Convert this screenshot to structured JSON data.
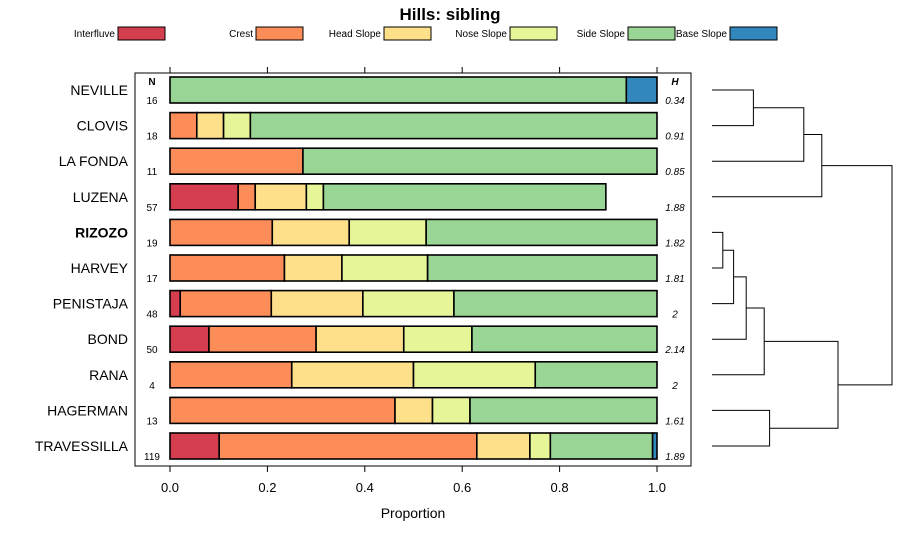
{
  "chart_data": {
    "type": "bar",
    "stacked": true,
    "orientation": "horizontal",
    "title": "Hills: sibling",
    "xlabel": "Proportion",
    "ylabel": "",
    "xlim": [
      0,
      1
    ],
    "xticks": [
      "0.0",
      "0.2",
      "0.4",
      "0.6",
      "0.8",
      "1.0"
    ],
    "n_header": "N",
    "h_header": "H",
    "legend": [
      {
        "name": "Interfluve",
        "color": "#D53E4F"
      },
      {
        "name": "Crest",
        "color": "#FC8D59"
      },
      {
        "name": "Head Slope",
        "color": "#FEE08B"
      },
      {
        "name": "Nose Slope",
        "color": "#E6F598"
      },
      {
        "name": "Side Slope",
        "color": "#99D594"
      },
      {
        "name": "Base Slope",
        "color": "#3288BD"
      }
    ],
    "rows": [
      {
        "name": "NEVILLE",
        "n": "16",
        "h": "0.34",
        "bold": false,
        "values": [
          0,
          0,
          0,
          0,
          0.937,
          0.063
        ]
      },
      {
        "name": "CLOVIS",
        "n": "18",
        "h": "0.91",
        "bold": false,
        "values": [
          0,
          0.055,
          0.055,
          0.055,
          0.835,
          0
        ]
      },
      {
        "name": "LA FONDA",
        "n": "11",
        "h": "0.85",
        "bold": false,
        "values": [
          0,
          0.273,
          0,
          0,
          0.727,
          0
        ]
      },
      {
        "name": "LUZENA",
        "n": "57",
        "h": "1.88",
        "bold": false,
        "values": [
          0.14,
          0.035,
          0.105,
          0.035,
          0.58,
          0
        ]
      },
      {
        "name": "RIZOZO",
        "n": "19",
        "h": "1.82",
        "bold": true,
        "values": [
          0,
          0.21,
          0.158,
          0.158,
          0.474,
          0
        ]
      },
      {
        "name": "HARVEY",
        "n": "17",
        "h": "1.81",
        "bold": false,
        "values": [
          0,
          0.235,
          0.118,
          0.176,
          0.471,
          0
        ]
      },
      {
        "name": "PENISTAJA",
        "n": "48",
        "h": "2",
        "bold": false,
        "values": [
          0.021,
          0.187,
          0.188,
          0.187,
          0.417,
          0
        ]
      },
      {
        "name": "BOND",
        "n": "50",
        "h": "2.14",
        "bold": false,
        "values": [
          0.08,
          0.22,
          0.18,
          0.14,
          0.38,
          0
        ]
      },
      {
        "name": "RANA",
        "n": "4",
        "h": "2",
        "bold": false,
        "values": [
          0,
          0.25,
          0.25,
          0.25,
          0.25,
          0
        ]
      },
      {
        "name": "HAGERMAN",
        "n": "13",
        "h": "1.61",
        "bold": false,
        "values": [
          0,
          0.462,
          0.077,
          0.077,
          0.384,
          0
        ]
      },
      {
        "name": "TRAVESSILLA",
        "n": "119",
        "h": "1.89",
        "bold": false,
        "values": [
          0.101,
          0.529,
          0.109,
          0.042,
          0.21,
          0.009
        ]
      }
    ],
    "dendrogram": {
      "merges": [
        {
          "left": "NEVILLE",
          "right": "CLOVIS",
          "height": 0.23
        },
        {
          "left": "#0",
          "right": "LA FONDA",
          "height": 0.51
        },
        {
          "left": "#1",
          "right": "LUZENA",
          "height": 0.61
        },
        {
          "left": "RIZOZO",
          "right": "HARVEY",
          "height": 0.06
        },
        {
          "left": "#3",
          "right": "PENISTAJA",
          "height": 0.12
        },
        {
          "left": "#4",
          "right": "BOND",
          "height": 0.19
        },
        {
          "left": "#5",
          "right": "RANA",
          "height": 0.29
        },
        {
          "left": "HAGERMAN",
          "right": "TRAVESSILLA",
          "height": 0.32
        },
        {
          "left": "#6",
          "right": "#7",
          "height": 0.7
        },
        {
          "left": "#2",
          "right": "#8",
          "height": 1.0
        }
      ]
    }
  }
}
